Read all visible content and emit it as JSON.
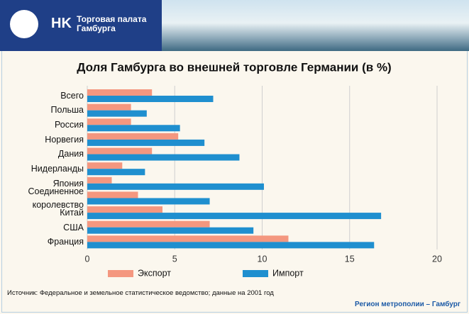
{
  "header": {
    "logo": "HK",
    "org": "Торговая палата Гамбурга"
  },
  "chart_data": {
    "type": "bar",
    "orientation": "horizontal",
    "title": "Доля Гамбурга во внешней торговле Германии (в %)",
    "categories": [
      "Всего",
      "Польша",
      "Россия",
      "Норвегия",
      "Дания",
      "Нидерланды",
      "Япония",
      "Соединенное королевство",
      "Китай",
      "США",
      "Франция"
    ],
    "series": [
      {
        "name": "Экспорт",
        "color": "#f4977f",
        "values": [
          3.7,
          2.5,
          2.5,
          5.2,
          3.7,
          2.0,
          1.4,
          2.9,
          4.3,
          7.0,
          11.5
        ]
      },
      {
        "name": "Импорт",
        "color": "#1f8fcf",
        "values": [
          7.2,
          3.4,
          5.3,
          6.7,
          8.7,
          3.3,
          10.1,
          7.0,
          16.8,
          9.5,
          16.4
        ]
      }
    ],
    "xlim": [
      0,
      20
    ],
    "xticks": [
      0,
      5,
      10,
      15,
      20
    ],
    "grid": true
  },
  "footer": {
    "source": "Источник: Федеральное и земельное статистическое ведомство; данные на 2001 год",
    "region": "Регион метрополии – Гамбург"
  }
}
